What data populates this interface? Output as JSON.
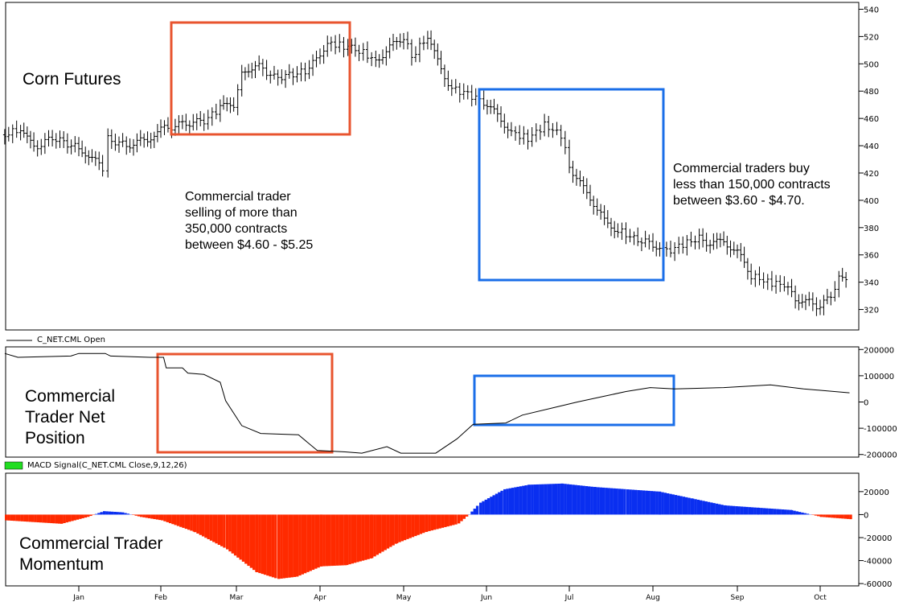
{
  "chart_data": [
    {
      "type": "bar",
      "subtype": "price-bars",
      "title": "Corn Futures",
      "x_ticks": [
        "Jan",
        "Feb",
        "Mar",
        "Apr",
        "May",
        "Jun",
        "Jul",
        "Aug",
        "Sep",
        "Oct"
      ],
      "y_ticks": [
        320,
        340,
        360,
        380,
        400,
        420,
        440,
        460,
        480,
        500,
        520,
        540
      ],
      "ylim": [
        305,
        545
      ],
      "y_axis_side": "right",
      "points": [
        [
          "12-04",
          448
        ],
        [
          "12-10",
          452
        ],
        [
          "12-15",
          438
        ],
        [
          "12-22",
          446
        ],
        [
          "01-01",
          438
        ],
        [
          "01-06",
          432
        ],
        [
          "01-10",
          422
        ],
        [
          "01-12",
          445
        ],
        [
          "01-19",
          440
        ],
        [
          "01-27",
          445
        ],
        [
          "02-01",
          452
        ],
        [
          "02-09",
          456
        ],
        [
          "02-17",
          458
        ],
        [
          "02-23",
          468
        ],
        [
          "02-28",
          470
        ],
        [
          "03-03",
          492
        ],
        [
          "03-08",
          500
        ],
        [
          "03-15",
          490
        ],
        [
          "03-22",
          492
        ],
        [
          "03-28",
          496
        ],
        [
          "04-01",
          508
        ],
        [
          "04-05",
          515
        ],
        [
          "04-11",
          512
        ],
        [
          "04-15",
          510
        ],
        [
          "04-21",
          502
        ],
        [
          "04-26",
          512
        ],
        [
          "05-01",
          520
        ],
        [
          "05-04",
          505
        ],
        [
          "05-10",
          520
        ],
        [
          "05-15",
          495
        ],
        [
          "05-19",
          482
        ],
        [
          "05-25",
          478
        ],
        [
          "05-31",
          472
        ],
        [
          "06-05",
          462
        ],
        [
          "06-10",
          450
        ],
        [
          "06-16",
          445
        ],
        [
          "06-22",
          455
        ],
        [
          "06-28",
          448
        ],
        [
          "07-01",
          425
        ],
        [
          "07-05",
          412
        ],
        [
          "07-10",
          398
        ],
        [
          "07-14",
          385
        ],
        [
          "07-19",
          378
        ],
        [
          "07-25",
          372
        ],
        [
          "08-01",
          368
        ],
        [
          "08-06",
          362
        ],
        [
          "08-12",
          368
        ],
        [
          "08-18",
          372
        ],
        [
          "08-22",
          368
        ],
        [
          "08-27",
          370
        ],
        [
          "09-01",
          362
        ],
        [
          "09-06",
          345
        ],
        [
          "09-12",
          340
        ],
        [
          "09-18",
          338
        ],
        [
          "09-22",
          328
        ],
        [
          "09-27",
          325
        ],
        [
          "10-01",
          322
        ],
        [
          "10-05",
          330
        ],
        [
          "10-08",
          342
        ],
        [
          "10-12",
          345
        ]
      ],
      "annotations": [
        "Commercial trader\nselling of more than\n350,000 contracts\nbetween $4.60 - $5.25",
        "Commercial traders buy\nless than 150,000 contracts\nbetween $3.60 - $4.70."
      ],
      "highlight_colors": {
        "sell_box": "#e8542f",
        "buy_box": "#1a6ee8"
      }
    },
    {
      "type": "line",
      "title": "Commercial\nTrader Net\nPosition",
      "legend": "C_NET.CML Open",
      "y_ticks": [
        -200000,
        -100000,
        0,
        100000,
        200000
      ],
      "ylim": [
        -210000,
        210000
      ],
      "color": "#000000",
      "points": [
        [
          "12-04",
          185000
        ],
        [
          "12-09",
          170000
        ],
        [
          "12-29",
          175000
        ],
        [
          "01-01",
          185000
        ],
        [
          "01-11",
          185000
        ],
        [
          "01-13",
          175000
        ],
        [
          "01-28",
          170000
        ],
        [
          "02-02",
          170000
        ],
        [
          "02-03",
          130000
        ],
        [
          "02-09",
          130000
        ],
        [
          "02-11",
          110000
        ],
        [
          "02-17",
          105000
        ],
        [
          "02-23",
          75000
        ],
        [
          "02-25",
          5000
        ],
        [
          "03-03",
          -90000
        ],
        [
          "03-10",
          -120000
        ],
        [
          "03-24",
          -125000
        ],
        [
          "03-31",
          -185000
        ],
        [
          "04-10",
          -190000
        ],
        [
          "04-16",
          -195000
        ],
        [
          "04-25",
          -170000
        ],
        [
          "04-30",
          -195000
        ],
        [
          "05-13",
          -195000
        ],
        [
          "05-21",
          -140000
        ],
        [
          "05-27",
          -85000
        ],
        [
          "06-08",
          -80000
        ],
        [
          "06-14",
          -50000
        ],
        [
          "06-26",
          -20000
        ],
        [
          "07-04",
          0
        ],
        [
          "07-13",
          20000
        ],
        [
          "07-22",
          40000
        ],
        [
          "07-31",
          55000
        ],
        [
          "08-09",
          50000
        ],
        [
          "08-27",
          55000
        ],
        [
          "09-13",
          65000
        ],
        [
          "09-25",
          50000
        ],
        [
          "10-12",
          35000
        ]
      ]
    },
    {
      "type": "bar",
      "title": "Commercial Trader\nMomentum",
      "legend": "MACD Signal(C_NET.CML Close,9,12,26)",
      "legend_color": "#22dd22",
      "y_ticks": [
        -60000,
        -40000,
        -20000,
        0,
        20000
      ],
      "ylim": [
        -62000,
        36000
      ],
      "positive_color": "#0a2ff0",
      "negative_color": "#ff2a00",
      "points": [
        [
          "12-04",
          -5000
        ],
        [
          "12-25",
          -8000
        ],
        [
          "01-04",
          -2000
        ],
        [
          "01-10",
          3000
        ],
        [
          "01-17",
          2000
        ],
        [
          "01-24",
          -2000
        ],
        [
          "02-01",
          -5000
        ],
        [
          "02-13",
          -15000
        ],
        [
          "02-25",
          -30000
        ],
        [
          "03-08",
          -50000
        ],
        [
          "03-16",
          -56000
        ],
        [
          "03-23",
          -54000
        ],
        [
          "04-01",
          -45000
        ],
        [
          "04-10",
          -44000
        ],
        [
          "04-19",
          -38000
        ],
        [
          "04-28",
          -25000
        ],
        [
          "05-09",
          -15000
        ],
        [
          "05-21",
          -8000
        ],
        [
          "05-25",
          0
        ],
        [
          "05-29",
          10000
        ],
        [
          "06-07",
          22000
        ],
        [
          "06-16",
          26000
        ],
        [
          "06-28",
          27000
        ],
        [
          "07-10",
          24000
        ],
        [
          "07-22",
          22000
        ],
        [
          "08-03",
          20000
        ],
        [
          "08-15",
          14000
        ],
        [
          "08-27",
          8000
        ],
        [
          "09-08",
          6000
        ],
        [
          "09-20",
          4000
        ],
        [
          "10-01",
          -2000
        ],
        [
          "10-12",
          -4000
        ]
      ]
    }
  ]
}
